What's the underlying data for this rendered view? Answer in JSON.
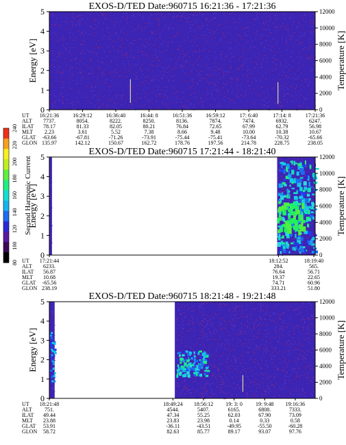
{
  "colorbar": {
    "label": "Second Harmonic Current",
    "ticks": [
      "80",
      "100",
      "120",
      "140",
      "160",
      "180",
      "200",
      "220",
      "240"
    ],
    "colors": [
      "#000000",
      "#3a0a5a",
      "#5a1aa0",
      "#2a2ad8",
      "#1e6cf0",
      "#15b4f0",
      "#10e0d0",
      "#20f080",
      "#60f040",
      "#c0f020",
      "#f8f020",
      "#f8a020",
      "#f03018"
    ]
  },
  "chart_data": [
    {
      "type": "heatmap",
      "title": "EXOS-D/TED   Date:960715   16:21:36 - 17:21:36",
      "ylabel": "Energy [eV]",
      "ylabel_right": "Temperature [K]",
      "ylim": [
        0,
        5
      ],
      "ylim_right": [
        0,
        12000
      ],
      "y_ticks": [
        "0",
        "1",
        "2",
        "3",
        "4",
        "5"
      ],
      "y_ticks_right": [
        "0",
        "2000",
        "4000",
        "6000",
        "8000",
        "10000",
        "12000"
      ],
      "background": "#3c24b4",
      "data_spans": [
        [
          0.0,
          1.0
        ]
      ],
      "markers": [
        {
          "t": 0.305,
          "e0": 0.35,
          "e1": 1.55
        },
        {
          "t": 0.86,
          "e0": 0.3,
          "e1": 1.4
        }
      ],
      "table": {
        "row_labels": [
          "UT",
          "ALT",
          "ILAT",
          "MLT",
          "GLAT",
          "GLON"
        ],
        "columns": [
          {
            "pos": 0.0,
            "values": [
              "16:21:36",
              "7737.",
              "78.17",
              "2.23",
              "-63.66",
              "135.97"
            ]
          },
          {
            "pos": 0.125,
            "values": [
              "16:29:12",
              "8054.",
              "81.33",
              "3.61",
              "-67.81",
              "142.12"
            ]
          },
          {
            "pos": 0.25,
            "values": [
              "16:36:40",
              "8222.",
              "82.05",
              "5.52",
              "-71.26",
              "150.67"
            ]
          },
          {
            "pos": 0.375,
            "values": [
              "16:44: 8",
              "8250.",
              "80.21",
              "7.38",
              "-73.91",
              "162.72"
            ]
          },
          {
            "pos": 0.5,
            "values": [
              "16:51:36",
              "8136.",
              "76.84",
              "8.66",
              "-75.44",
              "178.76"
            ]
          },
          {
            "pos": 0.625,
            "values": [
              "16:59:12",
              "7874.",
              "72.65",
              "9.48",
              "-75.41",
              "197.56"
            ]
          },
          {
            "pos": 0.75,
            "values": [
              "17: 6:40",
              "7474.",
              "67.99",
              "10.00",
              "-73.64",
              "214.78"
            ]
          },
          {
            "pos": 0.875,
            "values": [
              "17:14: 8",
              "6932.",
              "62.79",
              "10.38",
              "-70.32",
              "228.75"
            ]
          },
          {
            "pos": 1.0,
            "values": [
              "17:21:36",
              "6247.",
              "56.98",
              "10.67",
              "-65.66",
              "238.05"
            ]
          }
        ]
      }
    },
    {
      "type": "heatmap",
      "title": "EXOS-D/TED   Date:960715   17:21:44 - 18:21:40",
      "ylabel": "Energy [eV]",
      "ylabel_right": "Temperature [K]",
      "ylim": [
        0,
        5
      ],
      "ylim_right": [
        0,
        12000
      ],
      "y_ticks": [
        "0",
        "1",
        "2",
        "3",
        "4",
        "5"
      ],
      "y_ticks_right": [
        "0",
        "2000",
        "4000",
        "6000",
        "8000",
        "10000",
        "12000"
      ],
      "background": "#ffffff",
      "data_spans": [
        [
          0.0,
          0.01
        ],
        [
          0.857,
          1.0
        ]
      ],
      "markers": [],
      "table": {
        "row_labels": [
          "UT",
          "ALT",
          "ILAT",
          "MLT",
          "GLAT",
          "GLON"
        ],
        "columns": [
          {
            "pos": 0.0,
            "values": [
              "17:21:44",
              "6233.",
              "56.87",
              "10.68",
              "-65.56",
              "238.19"
            ]
          },
          {
            "pos": 0.862,
            "values": [
              "18:12:52",
              "284.",
              "76.64",
              "19.37",
              "74.71",
              "333.21"
            ]
          },
          {
            "pos": 0.995,
            "values": [
              "18:19:40",
              "565.",
              "56.71",
              "22.65",
              "60.96",
              "51.80"
            ]
          }
        ]
      }
    },
    {
      "type": "heatmap",
      "title": "EXOS-D/TED   Date:960715   18:21:48 - 19:21:48",
      "ylabel": "Energy [eV]",
      "ylabel_right": "Temperature [K]",
      "ylim": [
        0,
        5
      ],
      "ylim_right": [
        0,
        12000
      ],
      "y_ticks": [
        "0",
        "1",
        "2",
        "3",
        "4",
        "5"
      ],
      "y_ticks_right": [
        "0",
        "2000",
        "4000",
        "6000",
        "8000",
        "10000",
        "12000"
      ],
      "background": "#ffffff",
      "data_spans": [
        [
          0.0,
          0.02
        ],
        [
          0.472,
          1.0
        ]
      ],
      "markers": [
        {
          "t": 0.728,
          "e0": 0.35,
          "e1": 1.2
        }
      ],
      "table": {
        "row_labels": [
          "UT",
          "ALT",
          "ILAT",
          "MLT",
          "GLAT",
          "GLON"
        ],
        "columns": [
          {
            "pos": 0.0,
            "values": [
              "18:21:48",
              "751.",
              "49.44",
              "23.88",
              "53.91",
              "58.72"
            ]
          },
          {
            "pos": 0.465,
            "values": [
              "18:49:24",
              "4544.",
              "47.34",
              "23.83",
              "-36.11",
              "82.63"
            ]
          },
          {
            "pos": 0.58,
            "values": [
              "18:56:12",
              "5407.",
              "55.25",
              "23.98",
              "-43.51",
              "85.77"
            ]
          },
          {
            "pos": 0.695,
            "values": [
              "19: 3: 0",
              "6165.",
              "62.03",
              "0.14",
              "-49.95",
              "89.17"
            ]
          },
          {
            "pos": 0.81,
            "values": [
              "19: 9:48",
              "6808.",
              "67.90",
              "0.33",
              "-55.50",
              "93.07"
            ]
          },
          {
            "pos": 0.925,
            "values": [
              "19:16:36",
              "7333.",
              "73.09",
              "0.58",
              "-60.28",
              "97.76"
            ]
          }
        ]
      }
    }
  ]
}
